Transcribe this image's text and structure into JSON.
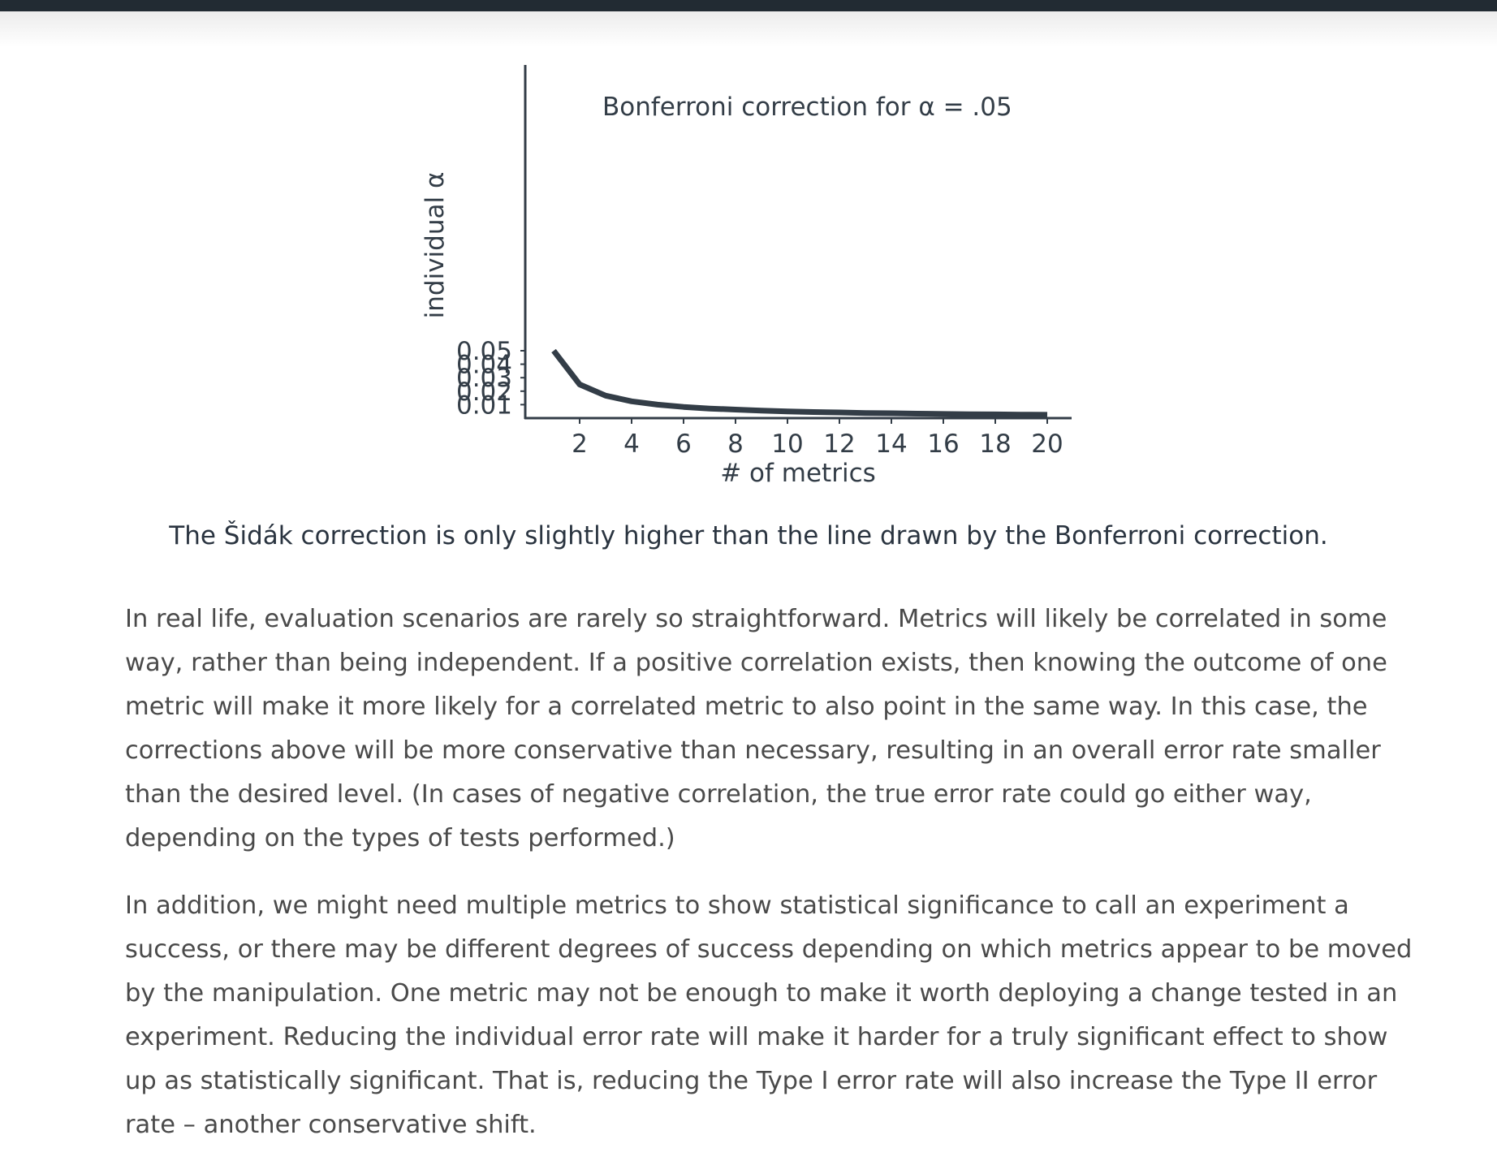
{
  "header": {
    "bar_color": "#222b33"
  },
  "chart_data": {
    "type": "line",
    "title": "Bonferroni correction for α = .05",
    "xlabel": "# of metrics",
    "ylabel": "individual α",
    "x_ticks": [
      "2",
      "4",
      "6",
      "8",
      "10",
      "12",
      "14",
      "16",
      "18",
      "20"
    ],
    "y_ticks": [
      "0.01",
      "0.02",
      "0.03",
      "0.04",
      "0.05"
    ],
    "x_tick_values": [
      2,
      4,
      6,
      8,
      10,
      12,
      14,
      16,
      18,
      20
    ],
    "y_tick_values": [
      0.01,
      0.02,
      0.03,
      0.04,
      0.05
    ],
    "xlim": [
      0.1,
      21.1
    ],
    "ylim": [
      0,
      0.0525
    ],
    "grid": false,
    "line_color": "#333d47",
    "series": [
      {
        "x": [
          1,
          2,
          3,
          4,
          5,
          6,
          7,
          8,
          9,
          10,
          11,
          12,
          13,
          14,
          15,
          16,
          17,
          18,
          19,
          20
        ],
        "values": [
          0.05,
          0.025,
          0.0167,
          0.0125,
          0.01,
          0.0083,
          0.0071,
          0.0063,
          0.0056,
          0.005,
          0.0045,
          0.0042,
          0.0038,
          0.0036,
          0.0033,
          0.0031,
          0.0029,
          0.0028,
          0.0026,
          0.0025
        ]
      }
    ]
  },
  "caption": "The Šidák correction is only slightly higher than the line drawn by the Bonferroni correction.",
  "article": {
    "paragraph1": [
      "In real life, evaluation scenarios are rarely so straightforward. Metrics will likely be correlated in some",
      "way, rather than being independent. If a positive correlation exists, then knowing the outcome of one",
      "metric will make it more likely for a correlated metric to also point in the same way. In this case, the",
      "corrections above will be more conservative than necessary, resulting in an overall error rate smaller",
      "than the desired level. (In cases of negative correlation, the true error rate could go either way,",
      "depending on the types of tests performed.)"
    ],
    "paragraph2": [
      "In addition, we might need multiple metrics to show statistical significance to call an experiment a",
      "success, or there may be different degrees of success depending on which metrics appear to be moved",
      "by the manipulation. One metric may not be enough to make it worth deploying a change tested in an",
      "experiment. Reducing the individual error rate will make it harder for a truly significant effect to show",
      "up as statistically significant. That is, reducing the Type I error rate will also increase the Type II error",
      "rate – another conservative shift."
    ]
  }
}
